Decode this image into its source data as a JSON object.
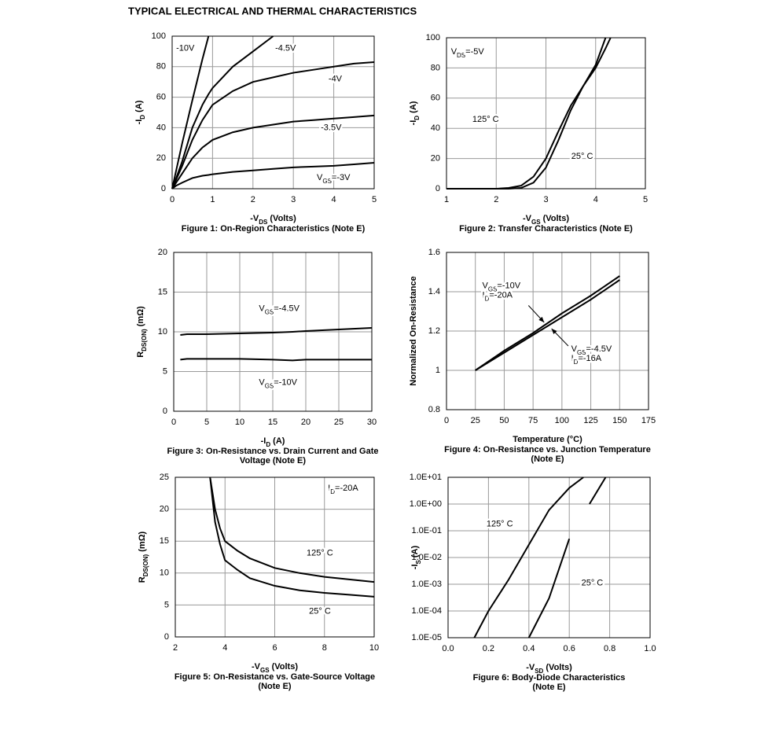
{
  "title": "TYPICAL ELECTRICAL AND THERMAL CHARACTERISTICS",
  "chart_data": [
    {
      "type": "line",
      "title": [
        "Figure 1: On-Region Characteristics (Note E)"
      ],
      "xlabel": [
        "-V",
        "DS",
        " (Volts)"
      ],
      "ylabel": [
        "-I",
        "D",
        " (A)"
      ],
      "xlim": [
        0,
        5
      ],
      "ylim": [
        0,
        100
      ],
      "xticks": [
        0,
        1,
        2,
        3,
        4,
        5
      ],
      "yticks": [
        0,
        20,
        40,
        60,
        80,
        100
      ],
      "grid": true,
      "x": [
        0,
        0.1,
        0.25,
        0.5,
        0.75,
        0.9,
        1,
        1.5,
        2,
        2.5,
        3,
        3.5,
        4,
        4.5,
        5
      ],
      "series": [
        {
          "color": "#000000",
          "values": [
            0,
            12,
            30,
            58,
            85,
            100,
            null,
            null,
            null,
            null,
            null,
            null,
            null,
            null,
            null
          ]
        },
        {
          "color": "#000000",
          "values": [
            0,
            7,
            18,
            40,
            55,
            62,
            66,
            80,
            90,
            100,
            null,
            null,
            null,
            null,
            null
          ]
        },
        {
          "color": "#000000",
          "values": [
            0,
            6,
            15,
            32,
            45,
            51,
            55,
            64,
            70,
            73,
            76,
            78,
            80,
            82,
            83
          ]
        },
        {
          "color": "#000000",
          "values": [
            0,
            4,
            10,
            20,
            27,
            30,
            32,
            37,
            40,
            42,
            44,
            45,
            46,
            47,
            48
          ]
        },
        {
          "color": "#000000",
          "values": [
            0,
            2,
            4,
            7,
            8.5,
            9,
            9.5,
            11,
            12,
            13,
            14,
            14.5,
            15,
            16,
            17
          ]
        }
      ],
      "annotations": [
        [
          [
            "-10V"
          ]
        ],
        [
          [
            "-4.5V"
          ]
        ],
        [
          [
            "-4V"
          ]
        ],
        [
          [
            "-3.5V"
          ]
        ],
        [
          [
            "V",
            "GS",
            "=-3V"
          ]
        ]
      ]
    },
    {
      "type": "line",
      "title": [
        "Figure 2: Transfer Characteristics (Note E)"
      ],
      "xlabel": [
        "-V",
        "GS",
        " (Volts)"
      ],
      "ylabel": [
        "-I",
        "D",
        " (A)"
      ],
      "xlim": [
        1,
        5
      ],
      "ylim": [
        0,
        100
      ],
      "xticks": [
        1,
        2,
        3,
        4,
        5
      ],
      "yticks": [
        0,
        20,
        40,
        60,
        80,
        100
      ],
      "grid": true,
      "x": [
        1,
        2,
        2.25,
        2.5,
        2.75,
        3,
        3.25,
        3.5,
        3.75,
        4,
        4.2,
        4.3
      ],
      "series": [
        {
          "color": "#000000",
          "values": [
            0,
            0,
            0.5,
            2,
            8,
            20,
            38,
            55,
            68,
            80,
            93,
            100
          ]
        },
        {
          "color": "#000000",
          "values": [
            0,
            0,
            0,
            0.5,
            4,
            14,
            32,
            52,
            68,
            82,
            100,
            null
          ]
        }
      ],
      "annotations": [
        [
          [
            "V",
            "DS",
            "=-5V"
          ]
        ],
        [
          [
            "125° C"
          ]
        ],
        [
          [
            "25° C"
          ]
        ]
      ]
    },
    {
      "type": "line",
      "title": [
        "Figure 3: On-Resistance vs. Drain Current and Gate",
        "Voltage (Note E)"
      ],
      "xlabel": [
        "-I",
        "D",
        " (A)"
      ],
      "ylabel": [
        "R",
        "DS(ON)",
        " (mΩ)"
      ],
      "xlim": [
        0,
        30
      ],
      "ylim": [
        0,
        20
      ],
      "xticks": [
        0,
        5,
        10,
        15,
        20,
        25,
        30
      ],
      "yticks": [
        0,
        5,
        10,
        15,
        20
      ],
      "grid": true,
      "x": [
        1,
        2,
        5,
        10,
        15,
        18,
        20,
        25,
        30
      ],
      "series": [
        {
          "color": "#000000",
          "values": [
            9.6,
            9.7,
            9.7,
            9.8,
            9.9,
            10.0,
            10.1,
            10.3,
            10.5
          ]
        },
        {
          "color": "#000000",
          "values": [
            6.5,
            6.6,
            6.6,
            6.6,
            6.5,
            6.4,
            6.5,
            6.5,
            6.5
          ]
        }
      ],
      "annotations": [
        [
          [
            "V",
            "GS",
            "=-4.5V"
          ]
        ],
        [
          [
            "V",
            "GS",
            "=-10V"
          ]
        ]
      ]
    },
    {
      "type": "line",
      "title": [
        "Figure 4: On-Resistance vs. Junction Temperature",
        "(Note E)"
      ],
      "xlabel": [
        "Temperature (°C)"
      ],
      "ylabel": [
        "Normalized On-Resistance"
      ],
      "xlim": [
        0,
        175
      ],
      "ylim": [
        0.8,
        1.6
      ],
      "xticks": [
        0,
        25,
        50,
        75,
        100,
        125,
        150,
        175
      ],
      "yticks": [
        0.8,
        1,
        1.2,
        1.4,
        1.6
      ],
      "grid": true,
      "x": [
        25,
        50,
        75,
        100,
        125,
        150
      ],
      "series": [
        {
          "color": "#000000",
          "values": [
            1,
            1.1,
            1.19,
            1.29,
            1.38,
            1.48
          ]
        },
        {
          "color": "#000000",
          "values": [
            1,
            1.09,
            1.18,
            1.27,
            1.36,
            1.46
          ]
        }
      ],
      "annotations": [
        [
          [
            "V",
            "GS",
            "=-10V"
          ],
          [
            "I",
            "D",
            "=-20A"
          ]
        ],
        [
          [
            "V",
            "GS",
            "=-4.5V"
          ],
          [
            "I",
            "D",
            "=-16A"
          ]
        ]
      ]
    },
    {
      "type": "line",
      "title": [
        "Figure 5: On-Resistance vs. Gate-Source Voltage",
        "(Note E)"
      ],
      "xlabel": [
        "-V",
        "GS",
        " (Volts)"
      ],
      "ylabel": [
        "R",
        "DS(ON)",
        " (mΩ)"
      ],
      "xlim": [
        2,
        10
      ],
      "ylim": [
        0,
        25
      ],
      "xticks": [
        2,
        4,
        6,
        8,
        10
      ],
      "yticks": [
        0,
        5,
        10,
        15,
        20,
        25
      ],
      "grid": true,
      "x": [
        3.4,
        3.6,
        3.8,
        4,
        4.5,
        5,
        6,
        7,
        8,
        9,
        10
      ],
      "series": [
        {
          "color": "#000000",
          "values": [
            25,
            20,
            17,
            15,
            13.5,
            12.3,
            10.8,
            10,
            9.4,
            9,
            8.6
          ]
        },
        {
          "color": "#000000",
          "values": [
            25,
            18,
            14.5,
            12,
            10.5,
            9.2,
            8,
            7.3,
            6.9,
            6.6,
            6.3
          ]
        }
      ],
      "annotations": [
        [
          [
            "I",
            "D",
            "=-20A"
          ]
        ],
        [
          [
            "125° C"
          ]
        ],
        [
          [
            "25° C"
          ]
        ]
      ]
    },
    {
      "type": "line",
      "title": [
        "Figure 6: Body-Diode Characteristics",
        "(Note E)"
      ],
      "xlabel": [
        "-V",
        "SD",
        " (Volts)"
      ],
      "ylabel": [
        "-I",
        "S",
        " (A)"
      ],
      "xlim": [
        0,
        1
      ],
      "ylim": [
        1e-05,
        10
      ],
      "log_y": true,
      "xticks": [
        {
          "value": 0,
          "label": "0.0"
        },
        0.2,
        0.4,
        0.6,
        0.8,
        {
          "value": 1,
          "label": "1.0"
        }
      ],
      "yticks": [
        {
          "value": 1e-05,
          "label": "1.0E-05"
        },
        {
          "value": 0.0001,
          "label": "1.0E-04"
        },
        {
          "value": 0.001,
          "label": "1.0E-03"
        },
        {
          "value": 0.01,
          "label": "1.0E-02"
        },
        {
          "value": 0.1,
          "label": "1.0E-01"
        },
        {
          "value": 1,
          "label": "1.0E+00"
        },
        {
          "value": 10,
          "label": "1.0E+01"
        }
      ],
      "grid": true,
      "x": [
        0.13,
        0.2,
        0.3,
        0.4,
        0.5,
        0.6,
        0.67,
        0.7,
        0.78
      ],
      "series": [
        {
          "color": "#000000",
          "values": [
            1e-05,
            0.0001,
            0.0015,
            0.03,
            0.6,
            4,
            10,
            null,
            null
          ]
        },
        {
          "color": "#000000",
          "values": [
            null,
            null,
            null,
            1e-05,
            0.0003,
            0.05,
            null,
            1,
            10
          ]
        }
      ],
      "annotations": [
        [
          [
            "125° C"
          ]
        ],
        [
          [
            "25° C"
          ]
        ]
      ]
    }
  ]
}
